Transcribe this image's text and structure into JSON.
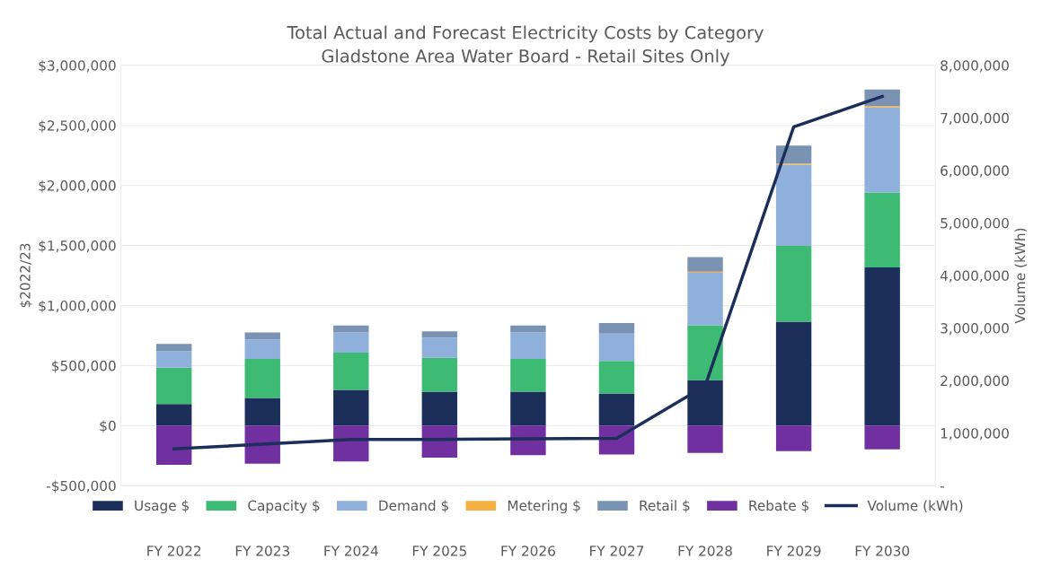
{
  "chart_data": {
    "type": "bar",
    "stacked": true,
    "title": "Total Actual and Forecast Electricity Costs by Category",
    "subtitle": "Gladstone Area Water Board - Retail Sites Only",
    "ylabel": "$2022/23",
    "y2label": "Volume (kWh)",
    "categories": [
      "FY 2022",
      "FY 2023",
      "FY 2024",
      "FY 2025",
      "FY 2026",
      "FY 2027",
      "FY 2028",
      "FY 2029",
      "FY 2030"
    ],
    "series": [
      {
        "name": "Usage $",
        "color": "#1b2f5a",
        "values": [
          179000,
          231000,
          298000,
          283000,
          283000,
          267000,
          380000,
          865000,
          1318000
        ]
      },
      {
        "name": "Capacity $",
        "color": "#3dba74",
        "values": [
          304000,
          324000,
          309000,
          281000,
          272000,
          272000,
          456000,
          632000,
          624000
        ]
      },
      {
        "name": "Demand $",
        "color": "#8fb0da",
        "values": [
          135000,
          163000,
          168000,
          168000,
          220000,
          227000,
          436000,
          676000,
          708000
        ]
      },
      {
        "name": "Metering $",
        "color": "#f5b041",
        "values": [
          null,
          null,
          null,
          null,
          null,
          null,
          10000,
          10000,
          10000
        ]
      },
      {
        "name": "Retail $",
        "color": "#7a93b3",
        "values": [
          62000,
          57000,
          58000,
          52000,
          58000,
          88000,
          121000,
          148000,
          138000
        ]
      },
      {
        "name": "Rebate $",
        "color": "#7030a0",
        "values": [
          -327000,
          -318000,
          -298000,
          -266000,
          -247000,
          -241000,
          -227000,
          -213000,
          -198000
        ]
      },
      {
        "name": "Volume (kWh)",
        "type": "line",
        "axis": "y2",
        "color": "#1b2f5a",
        "values": [
          700000,
          790000,
          880000,
          880000,
          890000,
          900000,
          1900000,
          6830000,
          7410000
        ]
      }
    ],
    "ylim": [
      -500000,
      3000000
    ],
    "yticks": [
      {
        "value": -500000,
        "label": "-$500,000"
      },
      {
        "value": 0,
        "label": "$0"
      },
      {
        "value": 500000,
        "label": "$500,000"
      },
      {
        "value": 1000000,
        "label": "$1,000,000"
      },
      {
        "value": 1500000,
        "label": "$1,500,000"
      },
      {
        "value": 2000000,
        "label": "$2,000,000"
      },
      {
        "value": 2500000,
        "label": "$2,500,000"
      },
      {
        "value": 3000000,
        "label": "$3,000,000"
      }
    ],
    "y2lim": [
      0,
      8000000
    ],
    "y2ticks": [
      {
        "value": 0,
        "label": "-"
      },
      {
        "value": 1000000,
        "label": "1,000,000"
      },
      {
        "value": 2000000,
        "label": "2,000,000"
      },
      {
        "value": 3000000,
        "label": "3,000,000"
      },
      {
        "value": 4000000,
        "label": "4,000,000"
      },
      {
        "value": 5000000,
        "label": "5,000,000"
      },
      {
        "value": 6000000,
        "label": "6,000,000"
      },
      {
        "value": 7000000,
        "label": "7,000,000"
      },
      {
        "value": 8000000,
        "label": "8,000,000"
      }
    ],
    "grid": "y",
    "legend": "bottom",
    "marker": "none",
    "line_style": "solid"
  }
}
